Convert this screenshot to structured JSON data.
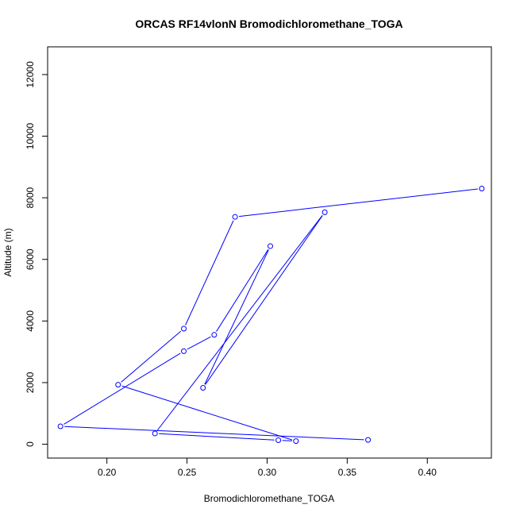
{
  "chart_data": {
    "type": "line",
    "title": "ORCAS RF14vlonN Bromodichloromethane_TOGA",
    "xlabel": "Bromodichloromethane_TOGA",
    "ylabel": "Altitude (m)",
    "xlim": [
      0.163,
      0.44
    ],
    "ylim": [
      -450,
      12900
    ],
    "x_ticks": [
      0.2,
      0.25,
      0.3,
      0.35,
      0.4
    ],
    "x_tick_labels": [
      "0.20",
      "0.25",
      "0.30",
      "0.35",
      "0.40"
    ],
    "y_ticks": [
      0,
      2000,
      4000,
      6000,
      8000,
      10000,
      12000
    ],
    "y_tick_labels": [
      "0",
      "2000",
      "4000",
      "6000",
      "8000",
      "10000",
      "12000"
    ],
    "grid": false,
    "series": [
      {
        "color": "#0000ff",
        "marker": "open-circle",
        "x": [
          0.434,
          0.28,
          0.248,
          0.207,
          0.318,
          0.307,
          0.23,
          0.336,
          0.26,
          0.302,
          0.267,
          0.248,
          0.171,
          0.363
        ],
        "y": [
          8300,
          7380,
          3750,
          1930,
          100,
          130,
          350,
          7530,
          1830,
          6430,
          3550,
          3020,
          580,
          140
        ]
      }
    ]
  }
}
